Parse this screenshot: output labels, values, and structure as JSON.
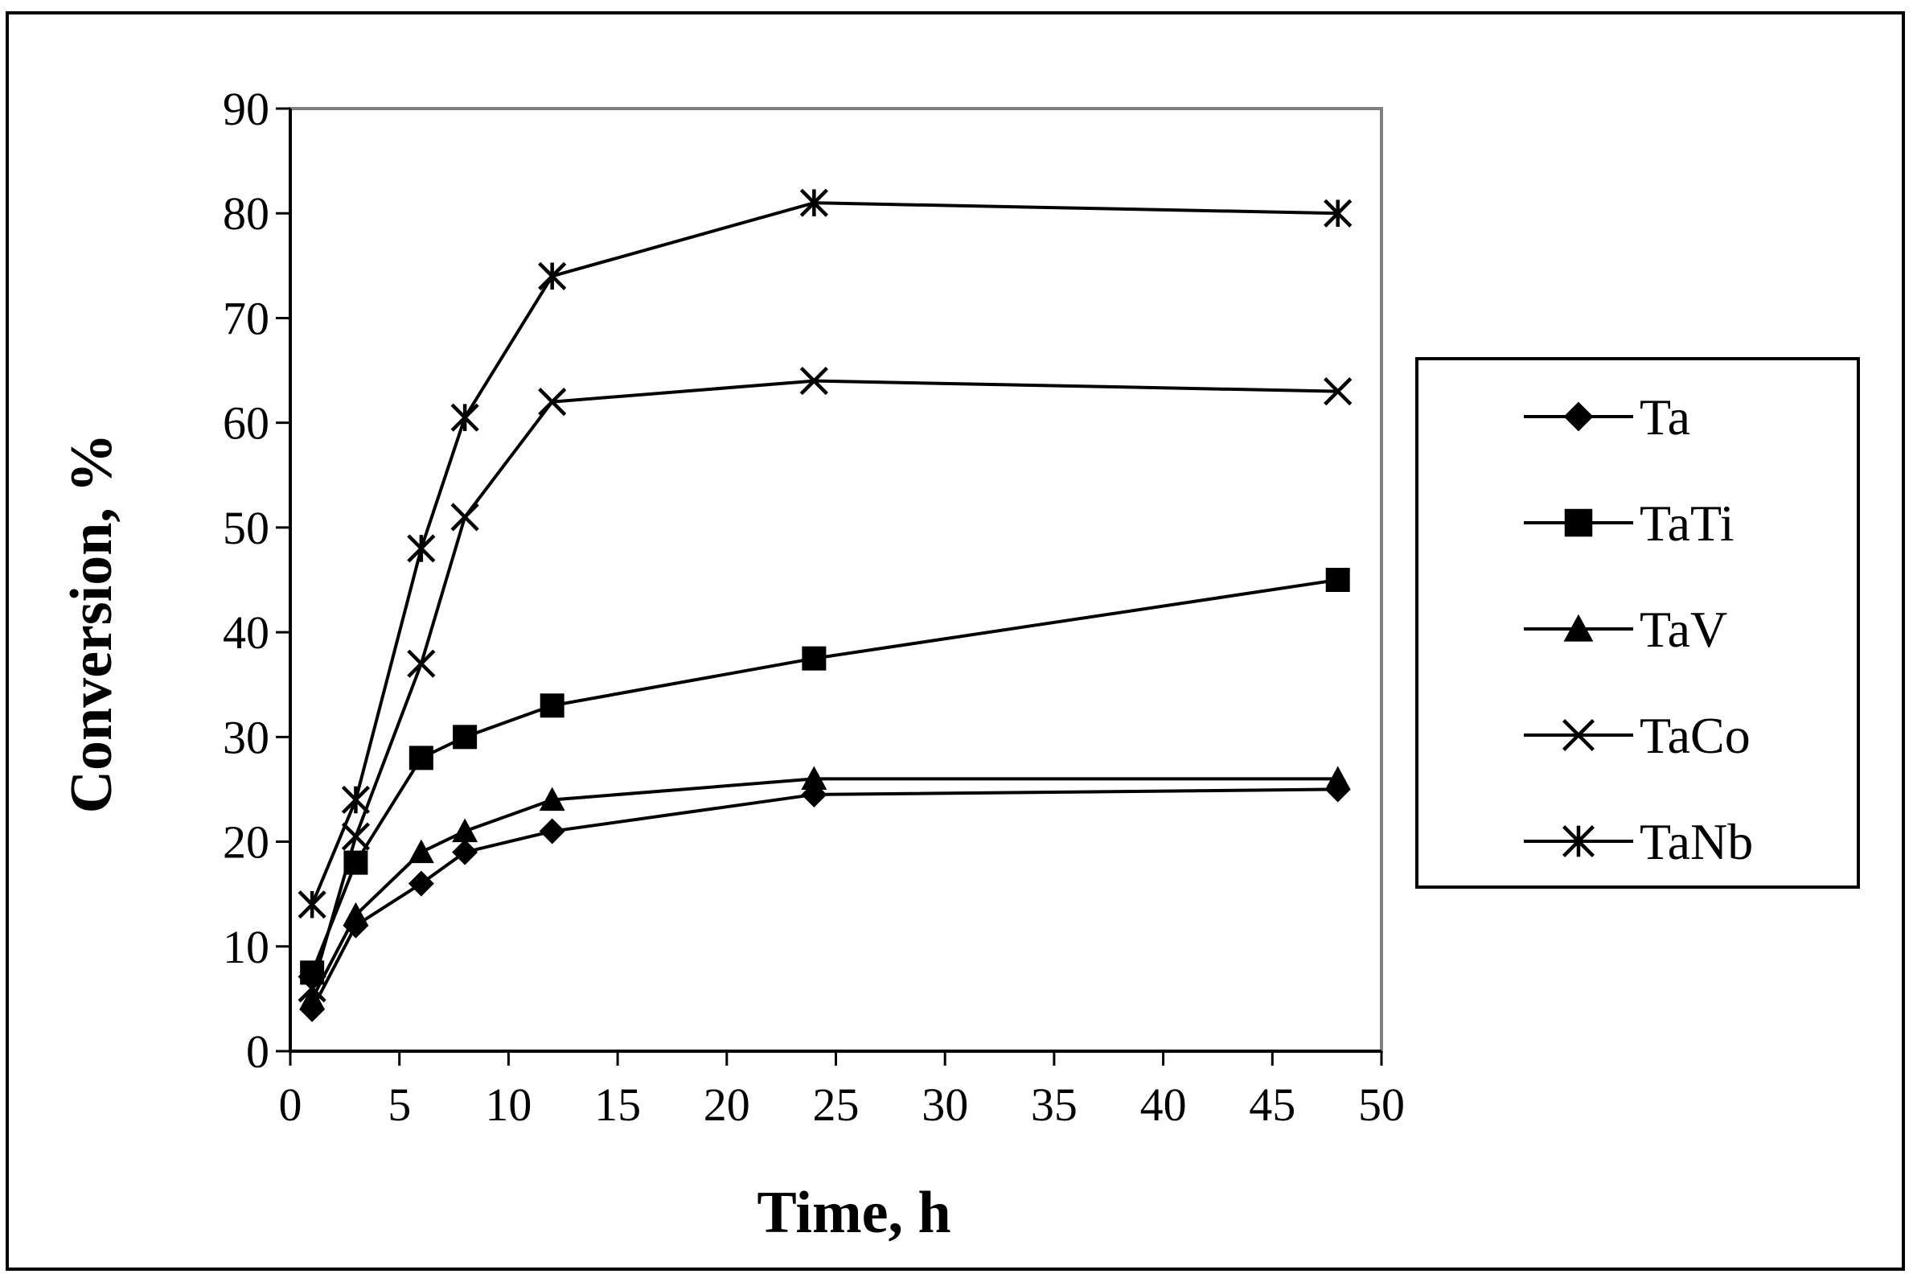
{
  "chart_data": {
    "type": "line",
    "title": "",
    "xlabel": "Time, h",
    "ylabel": "Conversion, %",
    "xlim": [
      0,
      50
    ],
    "ylim": [
      0,
      90
    ],
    "xticks": [
      0,
      5,
      10,
      15,
      20,
      25,
      30,
      35,
      40,
      45,
      50
    ],
    "yticks": [
      0,
      10,
      20,
      30,
      40,
      50,
      60,
      70,
      80,
      90
    ],
    "grid": false,
    "legend_position": "right",
    "x": [
      1,
      3,
      6,
      8,
      12,
      24,
      48
    ],
    "series": [
      {
        "name": "Ta",
        "marker": "diamond",
        "values": [
          4,
          12,
          16,
          19,
          21,
          24.5,
          25
        ]
      },
      {
        "name": "TaTi",
        "marker": "square",
        "values": [
          7.5,
          18,
          28,
          30,
          33,
          37.5,
          45
        ]
      },
      {
        "name": "TaV",
        "marker": "triangle",
        "values": [
          5,
          13,
          19,
          21,
          24,
          26,
          26
        ]
      },
      {
        "name": "TaCo",
        "marker": "x",
        "values": [
          6,
          20.5,
          37,
          51,
          62,
          64,
          63
        ]
      },
      {
        "name": "TaNb",
        "marker": "asterisk",
        "values": [
          14,
          24,
          48,
          60.5,
          74,
          81,
          80
        ]
      }
    ]
  }
}
